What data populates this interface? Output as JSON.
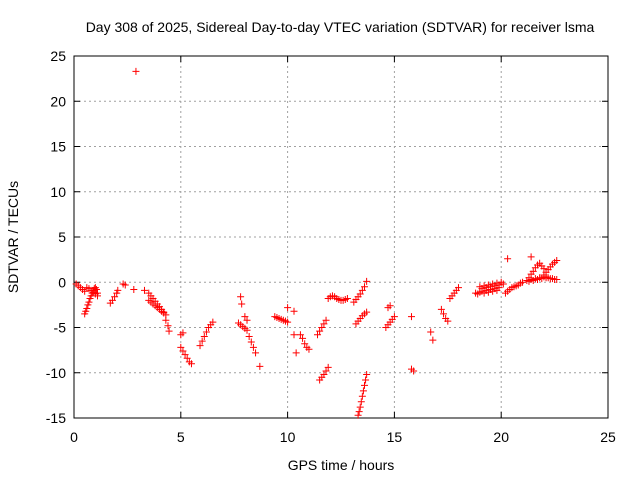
{
  "chart_data": {
    "type": "scatter",
    "title": "Day 308 of 2025, Sidereal Day-to-day VTEC variation (SDTVAR) for receiver lsma",
    "xlabel": "GPS time / hours",
    "ylabel": "SDTVAR / TECUs",
    "xlim": [
      0,
      25
    ],
    "ylim": [
      -15,
      25
    ],
    "xticks": [
      0,
      5,
      10,
      15,
      20,
      25
    ],
    "yticks": [
      -15,
      -10,
      -5,
      0,
      5,
      10,
      15,
      20,
      25
    ],
    "grid": true,
    "marker": "+",
    "color": "#ff0000",
    "segments": [
      {
        "x": [
          0.1,
          0.2,
          0.3,
          0.4,
          0.5
        ],
        "y": [
          -0.2,
          -0.4,
          -0.6,
          -0.8,
          -1.0
        ]
      },
      {
        "x": [
          0.5,
          0.55,
          0.6,
          0.65,
          0.7,
          0.75,
          0.8,
          0.85,
          0.9,
          0.95,
          1.0,
          1.05,
          1.1
        ],
        "y": [
          -3.5,
          -3.2,
          -2.9,
          -2.5,
          -2.2,
          -1.8,
          -1.5,
          -1.2,
          -0.9,
          -0.7,
          -0.6,
          -0.8,
          -1.2
        ]
      },
      {
        "x": [
          0.6,
          0.7,
          0.8,
          0.9,
          1.0,
          1.1
        ],
        "y": [
          -0.6,
          -0.7,
          -0.9,
          -1.1,
          -1.3,
          -1.5
        ]
      },
      {
        "x": [
          1.7,
          1.8,
          1.9,
          2.0,
          2.05
        ],
        "y": [
          -2.3,
          -2.0,
          -1.6,
          -1.2,
          -0.9
        ]
      },
      {
        "x": [
          2.3,
          2.4
        ],
        "y": [
          -0.2,
          -0.3
        ]
      },
      {
        "x": [
          2.8
        ],
        "y": [
          -0.8
        ]
      },
      {
        "x": [
          2.9
        ],
        "y": [
          23.3
        ]
      },
      {
        "x": [
          3.3
        ],
        "y": [
          -0.9
        ]
      },
      {
        "x": [
          3.5,
          3.6,
          3.7,
          3.8,
          3.9,
          4.0,
          4.1,
          4.2
        ],
        "y": [
          -1.2,
          -1.5,
          -1.8,
          -2.1,
          -2.4,
          -2.7,
          -3.0,
          -3.3
        ]
      },
      {
        "x": [
          3.5,
          3.6,
          3.7,
          3.8,
          3.9,
          4.0,
          4.1,
          4.2,
          4.3
        ],
        "y": [
          -2.0,
          -2.2,
          -2.4,
          -2.6,
          -2.8,
          -3.0,
          -3.2,
          -3.4,
          -3.6
        ]
      },
      {
        "x": [
          4.3,
          4.4,
          4.45
        ],
        "y": [
          -4.2,
          -4.8,
          -5.4
        ]
      },
      {
        "x": [
          5.0,
          5.1
        ],
        "y": [
          -5.8,
          -5.6
        ]
      },
      {
        "x": [
          5.0,
          5.1,
          5.2,
          5.3,
          5.4,
          5.5
        ],
        "y": [
          -7.2,
          -7.6,
          -8.0,
          -8.4,
          -8.8,
          -9.0
        ]
      },
      {
        "x": [
          5.9,
          6.0,
          6.1,
          6.2,
          6.3,
          6.4,
          6.5
        ],
        "y": [
          -7.0,
          -6.5,
          -6.0,
          -5.5,
          -5.0,
          -4.7,
          -4.4
        ]
      },
      {
        "x": [
          7.7,
          7.8,
          7.9,
          8.0,
          8.1
        ],
        "y": [
          -4.5,
          -4.7,
          -4.9,
          -5.1,
          -5.3
        ]
      },
      {
        "x": [
          7.8,
          7.85
        ],
        "y": [
          -1.6,
          -2.4
        ]
      },
      {
        "x": [
          8.0,
          8.1
        ],
        "y": [
          -3.8,
          -4.2
        ]
      },
      {
        "x": [
          8.2,
          8.3,
          8.4,
          8.5
        ],
        "y": [
          -6.0,
          -6.6,
          -7.2,
          -7.8
        ]
      },
      {
        "x": [
          8.7
        ],
        "y": [
          -9.3
        ]
      },
      {
        "x": [
          9.4,
          9.5,
          9.6,
          9.7,
          9.8,
          9.9,
          10.0
        ],
        "y": [
          -3.8,
          -3.9,
          -4.0,
          -4.1,
          -4.2,
          -4.3,
          -4.4
        ]
      },
      {
        "x": [
          10.0,
          10.3
        ],
        "y": [
          -2.8,
          -3.2
        ]
      },
      {
        "x": [
          10.3,
          10.4
        ],
        "y": [
          -5.8,
          -7.8
        ]
      },
      {
        "x": [
          10.6,
          10.7,
          10.8,
          10.9,
          11.0
        ],
        "y": [
          -5.8,
          -6.2,
          -6.8,
          -7.2,
          -7.4
        ]
      },
      {
        "x": [
          11.4,
          11.5,
          11.6,
          11.7,
          11.8
        ],
        "y": [
          -5.8,
          -5.4,
          -5.0,
          -4.6,
          -4.2
        ]
      },
      {
        "x": [
          11.5,
          11.6,
          11.7,
          11.8,
          11.9
        ],
        "y": [
          -10.8,
          -10.5,
          -10.2,
          -9.8,
          -9.4
        ]
      },
      {
        "x": [
          11.9,
          12.0,
          12.1,
          12.2
        ],
        "y": [
          -1.8,
          -1.6,
          -1.5,
          -1.6
        ]
      },
      {
        "x": [
          12.3,
          12.4,
          12.5,
          12.6,
          12.7,
          12.8
        ],
        "y": [
          -1.8,
          -1.9,
          -2.0,
          -2.0,
          -1.9,
          -1.8
        ]
      },
      {
        "x": [
          13.1,
          13.2,
          13.3,
          13.4,
          13.5,
          13.6
        ],
        "y": [
          -2.2,
          -1.9,
          -1.6,
          -1.3,
          -0.9,
          -0.5
        ]
      },
      {
        "x": [
          13.2,
          13.3,
          13.4,
          13.5,
          13.6,
          13.7
        ],
        "y": [
          -4.6,
          -4.3,
          -4.0,
          -3.7,
          -3.5,
          -3.3
        ]
      },
      {
        "x": [
          13.3,
          13.35,
          13.4,
          13.45,
          13.5,
          13.55,
          13.6,
          13.65,
          13.7
        ],
        "y": [
          -14.7,
          -14.3,
          -13.8,
          -13.2,
          -12.6,
          -12.0,
          -11.4,
          -10.8,
          -10.2
        ]
      },
      {
        "x": [
          13.7
        ],
        "y": [
          0.1
        ]
      },
      {
        "x": [
          14.6,
          14.7,
          14.8,
          14.9,
          15.0
        ],
        "y": [
          -5.0,
          -4.7,
          -4.4,
          -4.1,
          -3.8
        ]
      },
      {
        "x": [
          14.7,
          14.8
        ],
        "y": [
          -2.8,
          -2.6
        ]
      },
      {
        "x": [
          15.8,
          15.9
        ],
        "y": [
          -9.6,
          -9.8
        ]
      },
      {
        "x": [
          15.8
        ],
        "y": [
          -3.8
        ]
      },
      {
        "x": [
          16.7,
          16.8
        ],
        "y": [
          -5.5,
          -6.4
        ]
      },
      {
        "x": [
          17.2,
          17.3,
          17.4,
          17.5
        ],
        "y": [
          -3.0,
          -3.5,
          -4.0,
          -4.3
        ]
      },
      {
        "x": [
          17.6,
          17.7,
          17.8,
          17.9,
          18.0
        ],
        "y": [
          -1.8,
          -1.5,
          -1.2,
          -0.9,
          -0.6
        ]
      },
      {
        "x": [
          18.8,
          18.9,
          19.0,
          19.1,
          19.2,
          19.3,
          19.4,
          19.5,
          19.6,
          19.7,
          19.8,
          19.9
        ],
        "y": [
          -1.2,
          -1.3,
          -1.1,
          -1.0,
          -1.2,
          -0.9,
          -1.1,
          -0.8,
          -1.0,
          -0.7,
          -0.9,
          -0.6
        ]
      },
      {
        "x": [
          19.0,
          19.1,
          19.2,
          19.3,
          19.4,
          19.5,
          19.6,
          19.7,
          19.8,
          19.9,
          20.0,
          20.1
        ],
        "y": [
          -0.5,
          -0.7,
          -0.4,
          -0.6,
          -0.3,
          -0.5,
          -0.2,
          -0.4,
          -0.1,
          -0.3,
          0.0,
          -0.2
        ]
      },
      {
        "x": [
          20.2,
          20.3,
          20.4,
          20.5,
          20.6,
          20.7,
          20.8,
          20.9,
          21.0
        ],
        "y": [
          -1.2,
          -1.0,
          -0.8,
          -0.6,
          -0.5,
          -0.4,
          -0.3,
          -0.1,
          0.0
        ]
      },
      {
        "x": [
          20.3,
          21.4
        ],
        "y": [
          2.6,
          2.8
        ]
      },
      {
        "x": [
          21.2,
          21.3,
          21.4,
          21.5,
          21.6,
          21.7,
          21.8,
          21.9,
          22.0
        ],
        "y": [
          0.2,
          0.5,
          0.9,
          1.2,
          1.6,
          1.9,
          2.1,
          1.8,
          1.5
        ]
      },
      {
        "x": [
          21.3,
          21.4,
          21.5,
          21.6,
          21.7,
          21.8,
          21.9,
          22.0,
          22.1
        ],
        "y": [
          0.1,
          0.3,
          0.2,
          0.4,
          0.3,
          0.5,
          0.4,
          0.6,
          0.5
        ]
      },
      {
        "x": [
          22.0,
          22.1,
          22.2,
          22.3,
          22.4,
          22.5,
          22.6
        ],
        "y": [
          0.8,
          1.1,
          1.4,
          1.7,
          2.0,
          2.2,
          2.4
        ]
      },
      {
        "x": [
          22.1,
          22.2,
          22.3,
          22.4,
          22.5,
          22.6
        ],
        "y": [
          0.6,
          0.5,
          0.4,
          0.4,
          0.3,
          0.3
        ]
      }
    ]
  }
}
